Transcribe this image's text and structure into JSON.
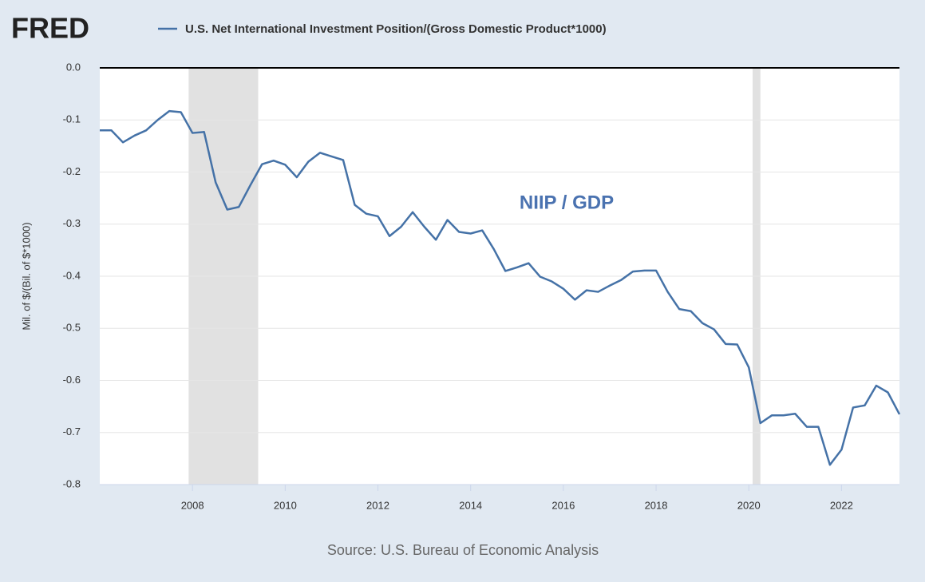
{
  "chart_data": {
    "type": "line",
    "logo": "FRED",
    "y_label": "Mil. of $/(Bil. of $*1000)",
    "annotation": "NIIP / GDP",
    "source": "Source: U.S. Bureau of Economic Analysis",
    "x": [
      2006,
      2006.25,
      2006.5,
      2006.75,
      2007,
      2007.25,
      2007.5,
      2007.75,
      2008,
      2008.25,
      2008.5,
      2008.75,
      2009,
      2009.25,
      2009.5,
      2009.75,
      2010,
      2010.25,
      2010.5,
      2010.75,
      2011,
      2011.25,
      2011.5,
      2011.75,
      2012,
      2012.25,
      2012.5,
      2012.75,
      2013,
      2013.25,
      2013.5,
      2013.75,
      2014,
      2014.25,
      2014.5,
      2014.75,
      2015,
      2015.25,
      2015.5,
      2015.75,
      2016,
      2016.25,
      2016.5,
      2016.75,
      2017,
      2017.25,
      2017.5,
      2017.75,
      2018,
      2018.25,
      2018.5,
      2018.75,
      2019,
      2019.25,
      2019.5,
      2019.75,
      2020,
      2020.25,
      2020.5,
      2020.75,
      2021,
      2021.25,
      2021.5,
      2021.75,
      2022,
      2022.25,
      2022.5,
      2022.75,
      2023,
      2023.25
    ],
    "series": [
      {
        "name": "U.S. Net International Investment Position/(Gross Domestic Product*1000)",
        "color": "#4572a7",
        "values": [
          -0.12,
          -0.12,
          -0.143,
          -0.13,
          -0.12,
          -0.1,
          -0.083,
          -0.085,
          -0.125,
          -0.123,
          -0.22,
          -0.272,
          -0.267,
          -0.225,
          -0.185,
          -0.178,
          -0.186,
          -0.21,
          -0.18,
          -0.163,
          -0.17,
          -0.177,
          -0.263,
          -0.28,
          -0.285,
          -0.323,
          -0.305,
          -0.277,
          -0.305,
          -0.33,
          -0.292,
          -0.315,
          -0.318,
          -0.312,
          -0.348,
          -0.39,
          -0.383,
          -0.375,
          -0.401,
          -0.41,
          -0.424,
          -0.445,
          -0.427,
          -0.43,
          -0.418,
          -0.407,
          -0.391,
          -0.389,
          -0.389,
          -0.43,
          -0.463,
          -0.467,
          -0.49,
          -0.502,
          -0.53,
          -0.531,
          -0.575,
          -0.682,
          -0.667,
          -0.667,
          -0.664,
          -0.689,
          -0.689,
          -0.762,
          -0.733,
          -0.652,
          -0.648,
          -0.61,
          -0.623,
          -0.665
        ]
      }
    ],
    "recessions": [
      [
        2007.917,
        2009.417
      ],
      [
        2020.083,
        2020.25
      ]
    ],
    "recession_color": "#e1e1e1",
    "xlim": [
      2006,
      2023.25
    ],
    "xticks": [
      2008,
      2010,
      2012,
      2014,
      2016,
      2018,
      2020,
      2022
    ],
    "ylim": [
      -0.8,
      0
    ],
    "yticks": [
      {
        "value": 0,
        "label": "0.0"
      },
      -0.1,
      -0.2,
      -0.3,
      -0.4,
      -0.5,
      -0.6,
      -0.7,
      -0.8
    ],
    "grid": true
  }
}
